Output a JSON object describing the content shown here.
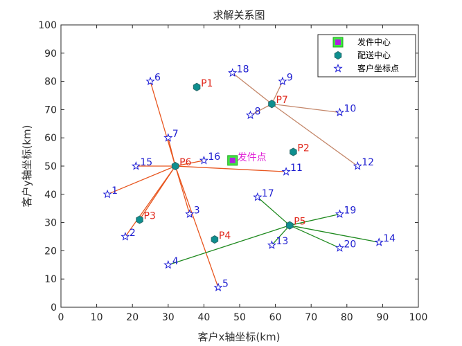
{
  "chart_data": {
    "type": "scatter",
    "title": "求解关系图",
    "xlabel": "客户x轴坐标(km)",
    "ylabel": "客户y轴坐标(km)",
    "xlim": [
      0,
      100
    ],
    "ylim": [
      0,
      100
    ],
    "xticks": [
      "0",
      "10",
      "20",
      "30",
      "40",
      "50",
      "60",
      "70",
      "80",
      "90",
      "100"
    ],
    "yticks": [
      "0",
      "10",
      "20",
      "30",
      "40",
      "50",
      "60",
      "70",
      "80",
      "90",
      "100"
    ],
    "grid": false,
    "legend_position": "top-right",
    "legend": [
      {
        "label": "发件中心",
        "marker": "square"
      },
      {
        "label": "配送中心",
        "marker": "hexagon"
      },
      {
        "label": "客户坐标点",
        "marker": "star"
      }
    ],
    "dispatch_center": {
      "label": "发件点",
      "x": 48,
      "y": 52
    },
    "distribution_centers": [
      {
        "label": "P1",
        "x": 38,
        "y": 78
      },
      {
        "label": "P2",
        "x": 65,
        "y": 55
      },
      {
        "label": "P3",
        "x": 22,
        "y": 31
      },
      {
        "label": "P4",
        "x": 43,
        "y": 24
      },
      {
        "label": "P5",
        "x": 64,
        "y": 29
      },
      {
        "label": "P6",
        "x": 32,
        "y": 50
      },
      {
        "label": "P7",
        "x": 59,
        "y": 72
      }
    ],
    "customers": [
      {
        "label": "1",
        "x": 13,
        "y": 40
      },
      {
        "label": "2",
        "x": 18,
        "y": 25
      },
      {
        "label": "3",
        "x": 36,
        "y": 33
      },
      {
        "label": "4",
        "x": 30,
        "y": 15
      },
      {
        "label": "5",
        "x": 44,
        "y": 7
      },
      {
        "label": "6",
        "x": 25,
        "y": 80
      },
      {
        "label": "7",
        "x": 30,
        "y": 60
      },
      {
        "label": "8",
        "x": 53,
        "y": 68
      },
      {
        "label": "9",
        "x": 62,
        "y": 80
      },
      {
        "label": "10",
        "x": 78,
        "y": 69
      },
      {
        "label": "11",
        "x": 63,
        "y": 48
      },
      {
        "label": "12",
        "x": 83,
        "y": 50
      },
      {
        "label": "13",
        "x": 59,
        "y": 22
      },
      {
        "label": "14",
        "x": 89,
        "y": 23
      },
      {
        "label": "15",
        "x": 21,
        "y": 50
      },
      {
        "label": "16",
        "x": 40,
        "y": 52
      },
      {
        "label": "17",
        "x": 55,
        "y": 39
      },
      {
        "label": "18",
        "x": 48,
        "y": 83
      },
      {
        "label": "19",
        "x": 78,
        "y": 33
      },
      {
        "label": "20",
        "x": 78,
        "y": 21
      }
    ],
    "routes": [
      {
        "from": "P6",
        "color": "#e8561f",
        "to": [
          "1",
          "2",
          "3",
          "5",
          "6",
          "7",
          "11",
          "15",
          "16",
          "P3"
        ]
      },
      {
        "from": "P7",
        "color": "#c4876a",
        "to": [
          "8",
          "9",
          "10",
          "12",
          "18"
        ]
      },
      {
        "from": "P5",
        "color": "#1f8a1f",
        "to": [
          "4",
          "13",
          "14",
          "17",
          "19",
          "20"
        ]
      }
    ],
    "colors": {
      "dispatch_fill": "#b020e0",
      "dispatch_edge": "#3ee83e",
      "center_fill": "#0e8f8f",
      "center_edge": "#2a6a6a",
      "star": "#1a1ad6",
      "center_label": "#e0261a",
      "customer_label": "#1d1dd0",
      "dispatch_label": "#e022d6"
    }
  }
}
